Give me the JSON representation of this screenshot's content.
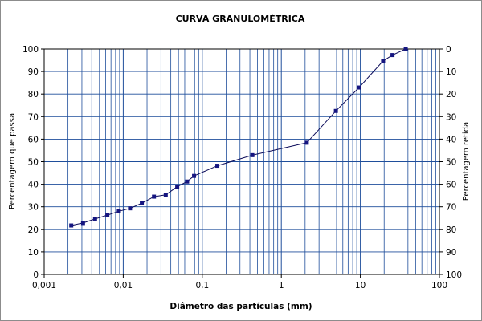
{
  "chart_data": {
    "type": "scatter",
    "title": "CURVA GRANULOMÉTRICA",
    "xlabel": "Diâmetro das partículas (mm)",
    "ylabel": "Percentagem que passa",
    "y2label": "Percentagem retida",
    "x_scale": "log",
    "xlim": [
      0.001,
      100
    ],
    "ylim": [
      0,
      100
    ],
    "y2lim": [
      100,
      0
    ],
    "x_tick_labels": [
      "0,001",
      "0,01",
      "0,1",
      "1",
      "10",
      "100"
    ],
    "y_tick_labels": [
      "0",
      "10",
      "20",
      "30",
      "40",
      "50",
      "60",
      "70",
      "80",
      "90",
      "100"
    ],
    "y2_tick_labels": [
      "100",
      "90",
      "80",
      "70",
      "60",
      "50",
      "40",
      "30",
      "20",
      "10",
      "0"
    ],
    "grid": true,
    "legend": "none",
    "colors": {
      "grid": "#1f4e9b",
      "series": "#0c0c5a",
      "marker": "#151580"
    },
    "series": [
      {
        "x": [
          0.0022,
          0.0031,
          0.0044,
          0.0063,
          0.0088,
          0.0122,
          0.0172,
          0.0245,
          0.0345,
          0.0482,
          0.0643,
          0.0787,
          0.155,
          0.43,
          2.1,
          4.9,
          9.6,
          19.4,
          25.5,
          37.5
        ],
        "y": [
          21.7,
          22.8,
          24.6,
          26.3,
          28.0,
          29.3,
          31.6,
          34.5,
          35.3,
          38.9,
          41.2,
          43.7,
          48.2,
          52.9,
          58.4,
          72.5,
          82.9,
          94.7,
          97.3,
          100.0
        ]
      }
    ]
  }
}
